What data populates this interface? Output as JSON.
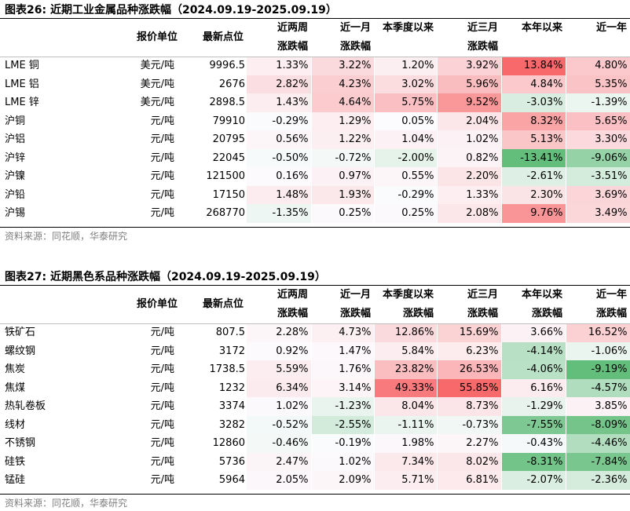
{
  "tables": [
    {
      "title": "图表26:  近期工业金属品种涨跌幅（2024.09.19-2025.09.19）",
      "headers": {
        "unit": "报价单位",
        "price": "最新点位",
        "periods_top": [
          "近两周",
          "近一月",
          "本季度以来",
          "近三月",
          "本年以来",
          "近一年"
        ],
        "periods_bottom": [
          "涨跌幅",
          "涨跌幅",
          "",
          "涨跌幅",
          "",
          ""
        ]
      },
      "rows": [
        {
          "name": "LME 铜",
          "unit": "美元/吨",
          "price": "9996.5",
          "values": [
            1.33,
            3.22,
            1.2,
            3.92,
            13.84,
            4.8
          ]
        },
        {
          "name": "LME 铝",
          "unit": "美元/吨",
          "price": "2676",
          "values": [
            2.82,
            4.23,
            3.02,
            5.96,
            4.84,
            5.35
          ]
        },
        {
          "name": "LME 锌",
          "unit": "美元/吨",
          "price": "2898.5",
          "values": [
            1.43,
            4.64,
            5.75,
            9.52,
            -3.03,
            -1.39
          ]
        },
        {
          "name": "沪铜",
          "unit": "元/吨",
          "price": "79910",
          "values": [
            -0.29,
            1.29,
            0.05,
            2.04,
            8.32,
            5.65
          ]
        },
        {
          "name": "沪铝",
          "unit": "元/吨",
          "price": "20795",
          "values": [
            0.56,
            1.22,
            1.04,
            1.02,
            5.13,
            3.3
          ]
        },
        {
          "name": "沪锌",
          "unit": "元/吨",
          "price": "22045",
          "values": [
            -0.5,
            -0.72,
            -2.0,
            0.82,
            -13.41,
            -9.06
          ]
        },
        {
          "name": "沪镍",
          "unit": "元/吨",
          "price": "121500",
          "values": [
            0.16,
            0.97,
            0.55,
            2.2,
            -2.61,
            -3.51
          ]
        },
        {
          "name": "沪铅",
          "unit": "元/吨",
          "price": "17150",
          "values": [
            1.48,
            1.93,
            -0.29,
            1.33,
            2.3,
            3.69
          ]
        },
        {
          "name": "沪锡",
          "unit": "元/吨",
          "price": "268770",
          "values": [
            -1.35,
            0.25,
            0.25,
            2.08,
            9.76,
            3.49
          ]
        }
      ],
      "source": "资料来源：同花顺，华泰研究"
    },
    {
      "title": "图表27:  近期黑色系品种涨跌幅（2024.09.19-2025.09.19）",
      "headers": {
        "unit": "报价单位",
        "price": "最新点位",
        "periods_top": [
          "近两周",
          "近一月",
          "本季度以来",
          "近三月",
          "本年以来",
          "近一年"
        ],
        "periods_bottom": [
          "涨跌幅",
          "涨跌幅",
          "涨跌幅",
          "涨跌幅",
          "涨跌幅",
          "涨跌幅"
        ]
      },
      "rows": [
        {
          "name": "铁矿石",
          "unit": "元/吨",
          "price": "807.5",
          "values": [
            2.28,
            4.73,
            12.86,
            15.69,
            3.66,
            16.52
          ]
        },
        {
          "name": "螺纹钢",
          "unit": "元/吨",
          "price": "3172",
          "values": [
            0.92,
            1.47,
            5.84,
            6.23,
            -4.14,
            -1.06
          ]
        },
        {
          "name": "焦炭",
          "unit": "元/吨",
          "price": "1738.5",
          "values": [
            5.59,
            1.76,
            23.82,
            26.53,
            -4.06,
            -9.19
          ]
        },
        {
          "name": "焦煤",
          "unit": "元/吨",
          "price": "1232",
          "values": [
            6.34,
            3.14,
            49.33,
            55.85,
            6.16,
            -4.57
          ]
        },
        {
          "name": "热轧卷板",
          "unit": "元/吨",
          "price": "3374",
          "values": [
            1.02,
            -1.23,
            8.04,
            8.73,
            -1.29,
            3.85
          ]
        },
        {
          "name": "线材",
          "unit": "元/吨",
          "price": "3282",
          "values": [
            -0.52,
            -2.55,
            -1.11,
            -0.73,
            -7.55,
            -8.09
          ]
        },
        {
          "name": "不锈钢",
          "unit": "元/吨",
          "price": "12860",
          "values": [
            -0.46,
            -0.19,
            1.98,
            2.27,
            -0.43,
            -4.46
          ]
        },
        {
          "name": "硅铁",
          "unit": "元/吨",
          "price": "5736",
          "values": [
            2.47,
            1.02,
            7.34,
            8.02,
            -8.31,
            -7.84
          ]
        },
        {
          "name": "锰硅",
          "unit": "元/吨",
          "price": "5964",
          "values": [
            2.05,
            2.09,
            5.71,
            6.81,
            -2.07,
            -2.36
          ]
        }
      ],
      "source": "资料来源：同花顺，华泰研究"
    }
  ],
  "colors": {
    "positive_max": "#f8696b",
    "negative_max": "#63be7b",
    "neutral": "#fcfcff"
  }
}
